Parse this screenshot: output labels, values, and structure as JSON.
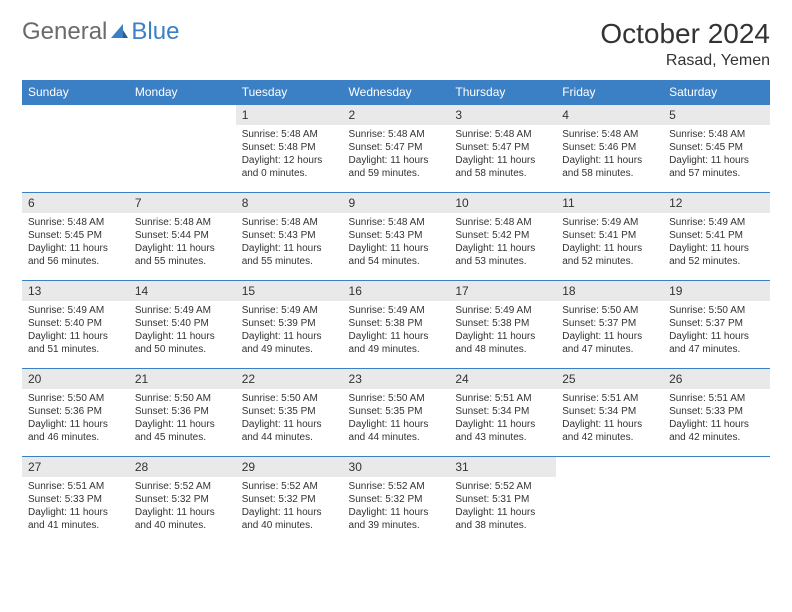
{
  "brand": {
    "part1": "General",
    "part2": "Blue"
  },
  "title": "October 2024",
  "location": "Rasad, Yemen",
  "colors": {
    "header_bg": "#3b7fc4",
    "daynum_bg": "#e9e9e9",
    "text": "#333333",
    "border": "#3b7fc4"
  },
  "dayHeaders": [
    "Sunday",
    "Monday",
    "Tuesday",
    "Wednesday",
    "Thursday",
    "Friday",
    "Saturday"
  ],
  "weeks": [
    [
      {
        "blank": true
      },
      {
        "blank": true
      },
      {
        "num": "1",
        "sunrise": "Sunrise: 5:48 AM",
        "sunset": "Sunset: 5:48 PM",
        "daylight": "Daylight: 12 hours and 0 minutes."
      },
      {
        "num": "2",
        "sunrise": "Sunrise: 5:48 AM",
        "sunset": "Sunset: 5:47 PM",
        "daylight": "Daylight: 11 hours and 59 minutes."
      },
      {
        "num": "3",
        "sunrise": "Sunrise: 5:48 AM",
        "sunset": "Sunset: 5:47 PM",
        "daylight": "Daylight: 11 hours and 58 minutes."
      },
      {
        "num": "4",
        "sunrise": "Sunrise: 5:48 AM",
        "sunset": "Sunset: 5:46 PM",
        "daylight": "Daylight: 11 hours and 58 minutes."
      },
      {
        "num": "5",
        "sunrise": "Sunrise: 5:48 AM",
        "sunset": "Sunset: 5:45 PM",
        "daylight": "Daylight: 11 hours and 57 minutes."
      }
    ],
    [
      {
        "num": "6",
        "sunrise": "Sunrise: 5:48 AM",
        "sunset": "Sunset: 5:45 PM",
        "daylight": "Daylight: 11 hours and 56 minutes."
      },
      {
        "num": "7",
        "sunrise": "Sunrise: 5:48 AM",
        "sunset": "Sunset: 5:44 PM",
        "daylight": "Daylight: 11 hours and 55 minutes."
      },
      {
        "num": "8",
        "sunrise": "Sunrise: 5:48 AM",
        "sunset": "Sunset: 5:43 PM",
        "daylight": "Daylight: 11 hours and 55 minutes."
      },
      {
        "num": "9",
        "sunrise": "Sunrise: 5:48 AM",
        "sunset": "Sunset: 5:43 PM",
        "daylight": "Daylight: 11 hours and 54 minutes."
      },
      {
        "num": "10",
        "sunrise": "Sunrise: 5:48 AM",
        "sunset": "Sunset: 5:42 PM",
        "daylight": "Daylight: 11 hours and 53 minutes."
      },
      {
        "num": "11",
        "sunrise": "Sunrise: 5:49 AM",
        "sunset": "Sunset: 5:41 PM",
        "daylight": "Daylight: 11 hours and 52 minutes."
      },
      {
        "num": "12",
        "sunrise": "Sunrise: 5:49 AM",
        "sunset": "Sunset: 5:41 PM",
        "daylight": "Daylight: 11 hours and 52 minutes."
      }
    ],
    [
      {
        "num": "13",
        "sunrise": "Sunrise: 5:49 AM",
        "sunset": "Sunset: 5:40 PM",
        "daylight": "Daylight: 11 hours and 51 minutes."
      },
      {
        "num": "14",
        "sunrise": "Sunrise: 5:49 AM",
        "sunset": "Sunset: 5:40 PM",
        "daylight": "Daylight: 11 hours and 50 minutes."
      },
      {
        "num": "15",
        "sunrise": "Sunrise: 5:49 AM",
        "sunset": "Sunset: 5:39 PM",
        "daylight": "Daylight: 11 hours and 49 minutes."
      },
      {
        "num": "16",
        "sunrise": "Sunrise: 5:49 AM",
        "sunset": "Sunset: 5:38 PM",
        "daylight": "Daylight: 11 hours and 49 minutes."
      },
      {
        "num": "17",
        "sunrise": "Sunrise: 5:49 AM",
        "sunset": "Sunset: 5:38 PM",
        "daylight": "Daylight: 11 hours and 48 minutes."
      },
      {
        "num": "18",
        "sunrise": "Sunrise: 5:50 AM",
        "sunset": "Sunset: 5:37 PM",
        "daylight": "Daylight: 11 hours and 47 minutes."
      },
      {
        "num": "19",
        "sunrise": "Sunrise: 5:50 AM",
        "sunset": "Sunset: 5:37 PM",
        "daylight": "Daylight: 11 hours and 47 minutes."
      }
    ],
    [
      {
        "num": "20",
        "sunrise": "Sunrise: 5:50 AM",
        "sunset": "Sunset: 5:36 PM",
        "daylight": "Daylight: 11 hours and 46 minutes."
      },
      {
        "num": "21",
        "sunrise": "Sunrise: 5:50 AM",
        "sunset": "Sunset: 5:36 PM",
        "daylight": "Daylight: 11 hours and 45 minutes."
      },
      {
        "num": "22",
        "sunrise": "Sunrise: 5:50 AM",
        "sunset": "Sunset: 5:35 PM",
        "daylight": "Daylight: 11 hours and 44 minutes."
      },
      {
        "num": "23",
        "sunrise": "Sunrise: 5:50 AM",
        "sunset": "Sunset: 5:35 PM",
        "daylight": "Daylight: 11 hours and 44 minutes."
      },
      {
        "num": "24",
        "sunrise": "Sunrise: 5:51 AM",
        "sunset": "Sunset: 5:34 PM",
        "daylight": "Daylight: 11 hours and 43 minutes."
      },
      {
        "num": "25",
        "sunrise": "Sunrise: 5:51 AM",
        "sunset": "Sunset: 5:34 PM",
        "daylight": "Daylight: 11 hours and 42 minutes."
      },
      {
        "num": "26",
        "sunrise": "Sunrise: 5:51 AM",
        "sunset": "Sunset: 5:33 PM",
        "daylight": "Daylight: 11 hours and 42 minutes."
      }
    ],
    [
      {
        "num": "27",
        "sunrise": "Sunrise: 5:51 AM",
        "sunset": "Sunset: 5:33 PM",
        "daylight": "Daylight: 11 hours and 41 minutes."
      },
      {
        "num": "28",
        "sunrise": "Sunrise: 5:52 AM",
        "sunset": "Sunset: 5:32 PM",
        "daylight": "Daylight: 11 hours and 40 minutes."
      },
      {
        "num": "29",
        "sunrise": "Sunrise: 5:52 AM",
        "sunset": "Sunset: 5:32 PM",
        "daylight": "Daylight: 11 hours and 40 minutes."
      },
      {
        "num": "30",
        "sunrise": "Sunrise: 5:52 AM",
        "sunset": "Sunset: 5:32 PM",
        "daylight": "Daylight: 11 hours and 39 minutes."
      },
      {
        "num": "31",
        "sunrise": "Sunrise: 5:52 AM",
        "sunset": "Sunset: 5:31 PM",
        "daylight": "Daylight: 11 hours and 38 minutes."
      },
      {
        "blank": true
      },
      {
        "blank": true
      }
    ]
  ]
}
